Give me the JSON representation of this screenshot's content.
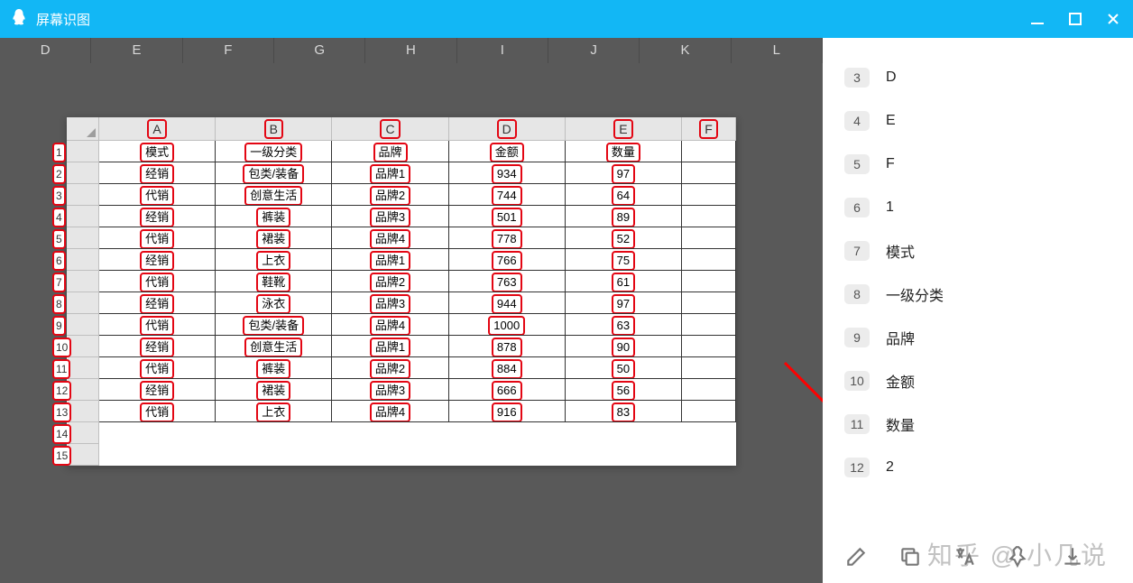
{
  "titlebar": {
    "title": "屏幕识图"
  },
  "bg_cols": [
    "D",
    "E",
    "F",
    "G",
    "H",
    "I",
    "J",
    "K",
    "L"
  ],
  "inner_col_letters": [
    "A",
    "B",
    "C",
    "D",
    "E",
    "F"
  ],
  "inner_row_nums": [
    "1",
    "2",
    "3",
    "4",
    "5",
    "6",
    "7",
    "8",
    "9",
    "10",
    "11",
    "12",
    "13",
    "14",
    "15"
  ],
  "table": {
    "header": [
      "模式",
      "一级分类",
      "品牌",
      "金额",
      "数量",
      ""
    ],
    "rows": [
      [
        "经销",
        "包类/装备",
        "品牌1",
        "934",
        "97",
        ""
      ],
      [
        "代销",
        "创意生活",
        "品牌2",
        "744",
        "64",
        ""
      ],
      [
        "经销",
        "裤装",
        "品牌3",
        "501",
        "89",
        ""
      ],
      [
        "代销",
        "裙装",
        "品牌4",
        "778",
        "52",
        ""
      ],
      [
        "经销",
        "上衣",
        "品牌1",
        "766",
        "75",
        ""
      ],
      [
        "代销",
        "鞋靴",
        "品牌2",
        "763",
        "61",
        ""
      ],
      [
        "经销",
        "泳衣",
        "品牌3",
        "944",
        "97",
        ""
      ],
      [
        "代销",
        "包类/装备",
        "品牌4",
        "1000",
        "63",
        ""
      ],
      [
        "经销",
        "创意生活",
        "品牌1",
        "878",
        "90",
        ""
      ],
      [
        "代销",
        "裤装",
        "品牌2",
        "884",
        "50",
        ""
      ],
      [
        "经销",
        "裙装",
        "品牌3",
        "666",
        "56",
        ""
      ],
      [
        "代销",
        "上衣",
        "品牌4",
        "916",
        "83",
        ""
      ],
      [
        "",
        "",
        "",
        "",
        "",
        ""
      ],
      [
        "",
        "",
        "",
        "",
        "",
        ""
      ]
    ]
  },
  "results": [
    {
      "n": "3",
      "t": "D"
    },
    {
      "n": "4",
      "t": "E"
    },
    {
      "n": "5",
      "t": "F"
    },
    {
      "n": "6",
      "t": "1"
    },
    {
      "n": "7",
      "t": "模式"
    },
    {
      "n": "8",
      "t": "一级分类"
    },
    {
      "n": "9",
      "t": "品牌"
    },
    {
      "n": "10",
      "t": "金额"
    },
    {
      "n": "11",
      "t": "数量"
    },
    {
      "n": "12",
      "t": "2"
    }
  ],
  "watermark": "知乎 @ 小几说",
  "colors": {
    "titlebar_bg": "#12b7f5",
    "left_bg": "#595959",
    "highlight_border": "#e30613",
    "arrow": "#ff0000"
  }
}
